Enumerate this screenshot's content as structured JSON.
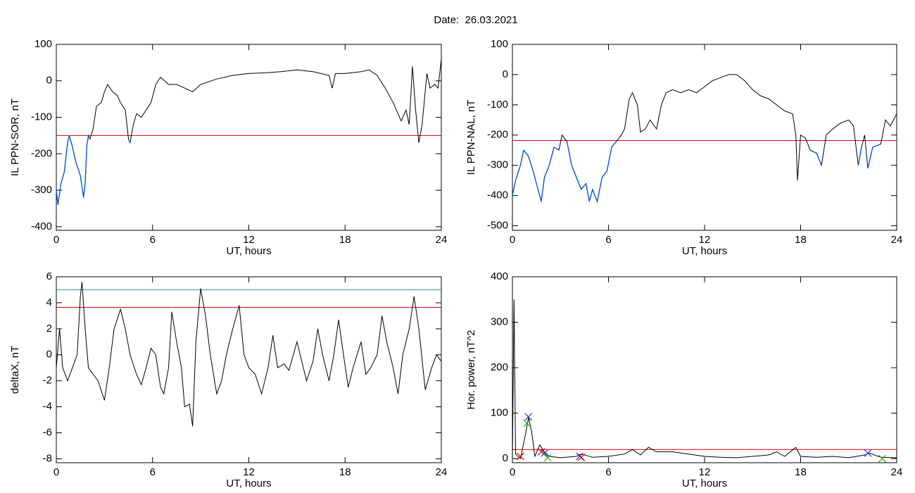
{
  "title": "Date:  26.03.2021",
  "chart_data": [
    {
      "type": "line",
      "ylabel": "IL PPN-SOR, nT",
      "xlabel": "UT, hours",
      "xlim": [
        0,
        24
      ],
      "xticks": [
        0,
        6,
        12,
        18,
        24
      ],
      "ylim": [
        -410,
        100
      ],
      "yticks": [
        100,
        0,
        -100,
        -200,
        -300,
        -400
      ],
      "color": "#000000",
      "below_color": "#0057d8",
      "hlines": [
        {
          "value": -150,
          "color": "#d40000"
        }
      ],
      "x": [
        0,
        0.1,
        0.3,
        0.5,
        0.7,
        0.8,
        1.0,
        1.2,
        1.5,
        1.7,
        1.8,
        1.9,
        2.0,
        2.1,
        2.3,
        2.5,
        2.8,
        3.0,
        3.2,
        3.5,
        3.8,
        4.0,
        4.3,
        4.5,
        4.6,
        4.8,
        5.0,
        5.3,
        5.6,
        5.9,
        6.2,
        6.5,
        7.0,
        7.5,
        8.0,
        8.5,
        9.0,
        10,
        11,
        12,
        13,
        14,
        15,
        16,
        17,
        17.2,
        17.4,
        18,
        19,
        19.5,
        20,
        20.5,
        21,
        21.5,
        21.8,
        22.0,
        22.2,
        22.4,
        22.6,
        22.8,
        23.1,
        23.3,
        23.6,
        23.8,
        24
      ],
      "values": [
        -300,
        -340,
        -280,
        -250,
        -170,
        -150,
        -180,
        -220,
        -260,
        -320,
        -280,
        -180,
        -150,
        -160,
        -130,
        -70,
        -60,
        -30,
        -10,
        -30,
        -40,
        -60,
        -80,
        -160,
        -170,
        -120,
        -90,
        -100,
        -80,
        -60,
        -10,
        10,
        -10,
        -10,
        -20,
        -30,
        -10,
        5,
        15,
        20,
        22,
        25,
        30,
        25,
        15,
        -20,
        20,
        20,
        25,
        30,
        15,
        -20,
        -60,
        -110,
        -80,
        -120,
        40,
        -80,
        -170,
        -120,
        20,
        -20,
        -10,
        -20,
        60
      ]
    },
    {
      "type": "line",
      "ylabel": "IL PPN-NAL, nT",
      "xlabel": "UT, hours",
      "xlim": [
        0,
        24
      ],
      "xticks": [
        0,
        6,
        12,
        18,
        24
      ],
      "ylim": [
        -515,
        100
      ],
      "yticks": [
        100,
        0,
        -100,
        -200,
        -300,
        -400,
        -500
      ],
      "color": "#000000",
      "below_color": "#0057d8",
      "hlines": [
        {
          "value": -218,
          "color": "#d40000"
        }
      ],
      "x": [
        0,
        0.2,
        0.5,
        0.7,
        1.0,
        1.3,
        1.6,
        1.8,
        2.0,
        2.3,
        2.6,
        2.9,
        3.1,
        3.4,
        3.7,
        4.0,
        4.3,
        4.6,
        4.8,
        5.0,
        5.3,
        5.6,
        5.9,
        6.2,
        6.5,
        6.8,
        7.0,
        7.3,
        7.5,
        7.8,
        8.0,
        8.3,
        8.6,
        9.0,
        9.3,
        9.6,
        10,
        10.5,
        11,
        11.5,
        12,
        12.5,
        13,
        13.5,
        14,
        14.5,
        15,
        15.5,
        16,
        16.5,
        17,
        17.5,
        17.7,
        17.8,
        18.0,
        18.3,
        18.6,
        19.0,
        19.3,
        19.6,
        20,
        20.5,
        21,
        21.3,
        21.6,
        21.8,
        22,
        22.2,
        22.5,
        23,
        23.3,
        23.6,
        24
      ],
      "values": [
        -400,
        -350,
        -300,
        -250,
        -270,
        -320,
        -380,
        -420,
        -340,
        -300,
        -240,
        -250,
        -200,
        -220,
        -300,
        -340,
        -380,
        -360,
        -420,
        -380,
        -420,
        -340,
        -320,
        -240,
        -220,
        -200,
        -180,
        -80,
        -60,
        -100,
        -190,
        -180,
        -150,
        -180,
        -100,
        -60,
        -50,
        -60,
        -50,
        -60,
        -40,
        -20,
        -10,
        0,
        0,
        -20,
        -50,
        -70,
        -80,
        -100,
        -120,
        -130,
        -200,
        -350,
        -200,
        -210,
        -250,
        -260,
        -300,
        -200,
        -180,
        -160,
        -150,
        -170,
        -300,
        -240,
        -200,
        -310,
        -240,
        -230,
        -150,
        -170,
        -130
      ]
    },
    {
      "type": "line",
      "ylabel": "deltaX, nT",
      "xlabel": "UT, hours",
      "xlim": [
        0,
        24
      ],
      "xticks": [
        0,
        6,
        12,
        18,
        24
      ],
      "ylim": [
        -8.3,
        6
      ],
      "yticks": [
        6,
        4,
        2,
        0,
        -2,
        -4,
        -6,
        -8
      ],
      "color": "#000000",
      "hlines": [
        {
          "value": 5.0,
          "color": "#2a9a9a"
        },
        {
          "value": 3.65,
          "color": "#d40000"
        }
      ],
      "x": [
        0,
        0.2,
        0.4,
        0.7,
        1.0,
        1.3,
        1.5,
        1.6,
        1.8,
        2.0,
        2.3,
        2.6,
        3.0,
        3.3,
        3.6,
        4.0,
        4.3,
        4.6,
        5.0,
        5.3,
        5.6,
        5.9,
        6.2,
        6.5,
        6.7,
        7.0,
        7.2,
        7.5,
        7.8,
        8.0,
        8.3,
        8.5,
        8.7,
        9.0,
        9.3,
        9.6,
        10.0,
        10.3,
        10.6,
        11.0,
        11.4,
        11.7,
        12.0,
        12.4,
        12.8,
        13.2,
        13.5,
        13.8,
        14.2,
        14.5,
        15.0,
        15.3,
        15.6,
        16.0,
        16.3,
        16.6,
        17.0,
        17.3,
        17.6,
        17.9,
        18.2,
        18.5,
        19.0,
        19.3,
        19.6,
        20.0,
        20.3,
        20.6,
        21.0,
        21.3,
        21.6,
        22.0,
        22.3,
        22.6,
        23.0,
        23.4,
        23.7,
        24
      ],
      "values": [
        -1,
        2,
        -1,
        -2,
        -1,
        0,
        4.5,
        5.6,
        2,
        -1,
        -1.5,
        -2,
        -3.5,
        -1,
        2,
        3.5,
        2,
        0,
        -1.5,
        -2.3,
        -1,
        0.5,
        0,
        -2.5,
        -3,
        -1,
        3.3,
        1,
        -1,
        -4,
        -3.8,
        -5.5,
        1,
        5.1,
        3,
        0,
        -3,
        -2,
        0,
        2,
        3.8,
        0,
        -1,
        -1.5,
        -3,
        -1,
        1.5,
        -1,
        -0.7,
        -1.2,
        1,
        -0.5,
        -2,
        -0.5,
        2,
        0,
        -2,
        0,
        2.7,
        0,
        -2.5,
        -1,
        1,
        -1.5,
        -1,
        0,
        3,
        1,
        -1,
        -3,
        0,
        2,
        4.5,
        2,
        -2.7,
        -1,
        0,
        -0.5
      ]
    },
    {
      "type": "line",
      "ylabel": "Hor. power, nT^2",
      "xlabel": "UT, hours",
      "xlim": [
        0,
        24
      ],
      "xticks": [
        0,
        6,
        12,
        18,
        24
      ],
      "ylim": [
        -9,
        400
      ],
      "yticks": [
        400,
        300,
        200,
        100,
        0
      ],
      "color": "#000000",
      "hlines": [
        {
          "value": 20,
          "color": "#d40000"
        }
      ],
      "x": [
        0,
        0.1,
        0.2,
        0.5,
        0.8,
        1.0,
        1.2,
        1.4,
        1.7,
        2.0,
        2.3,
        3,
        4,
        4.3,
        5,
        6,
        7,
        7.5,
        8,
        8.5,
        9,
        10,
        11,
        12,
        13,
        14,
        15,
        16,
        16.5,
        17,
        17.7,
        18,
        19,
        20,
        21,
        22,
        22.3,
        23,
        24
      ],
      "values": [
        0,
        350,
        10,
        0,
        50,
        90,
        60,
        5,
        30,
        15,
        5,
        2,
        5,
        10,
        3,
        5,
        10,
        20,
        8,
        25,
        15,
        15,
        10,
        5,
        3,
        2,
        5,
        8,
        15,
        5,
        25,
        5,
        3,
        5,
        2,
        8,
        12,
        3,
        2
      ],
      "markers": [
        {
          "color": "#2040d0",
          "x": [
            1.0,
            2.0,
            4.2,
            22.2
          ],
          "y": [
            92,
            12,
            5,
            12
          ]
        },
        {
          "color": "#d40000",
          "x": [
            0.5,
            1.8,
            4.3
          ],
          "y": [
            5,
            15,
            3
          ]
        },
        {
          "color": "#20b020",
          "x": [
            0.9,
            2.2,
            23.1
          ],
          "y": [
            78,
            2,
            0
          ]
        }
      ]
    }
  ]
}
